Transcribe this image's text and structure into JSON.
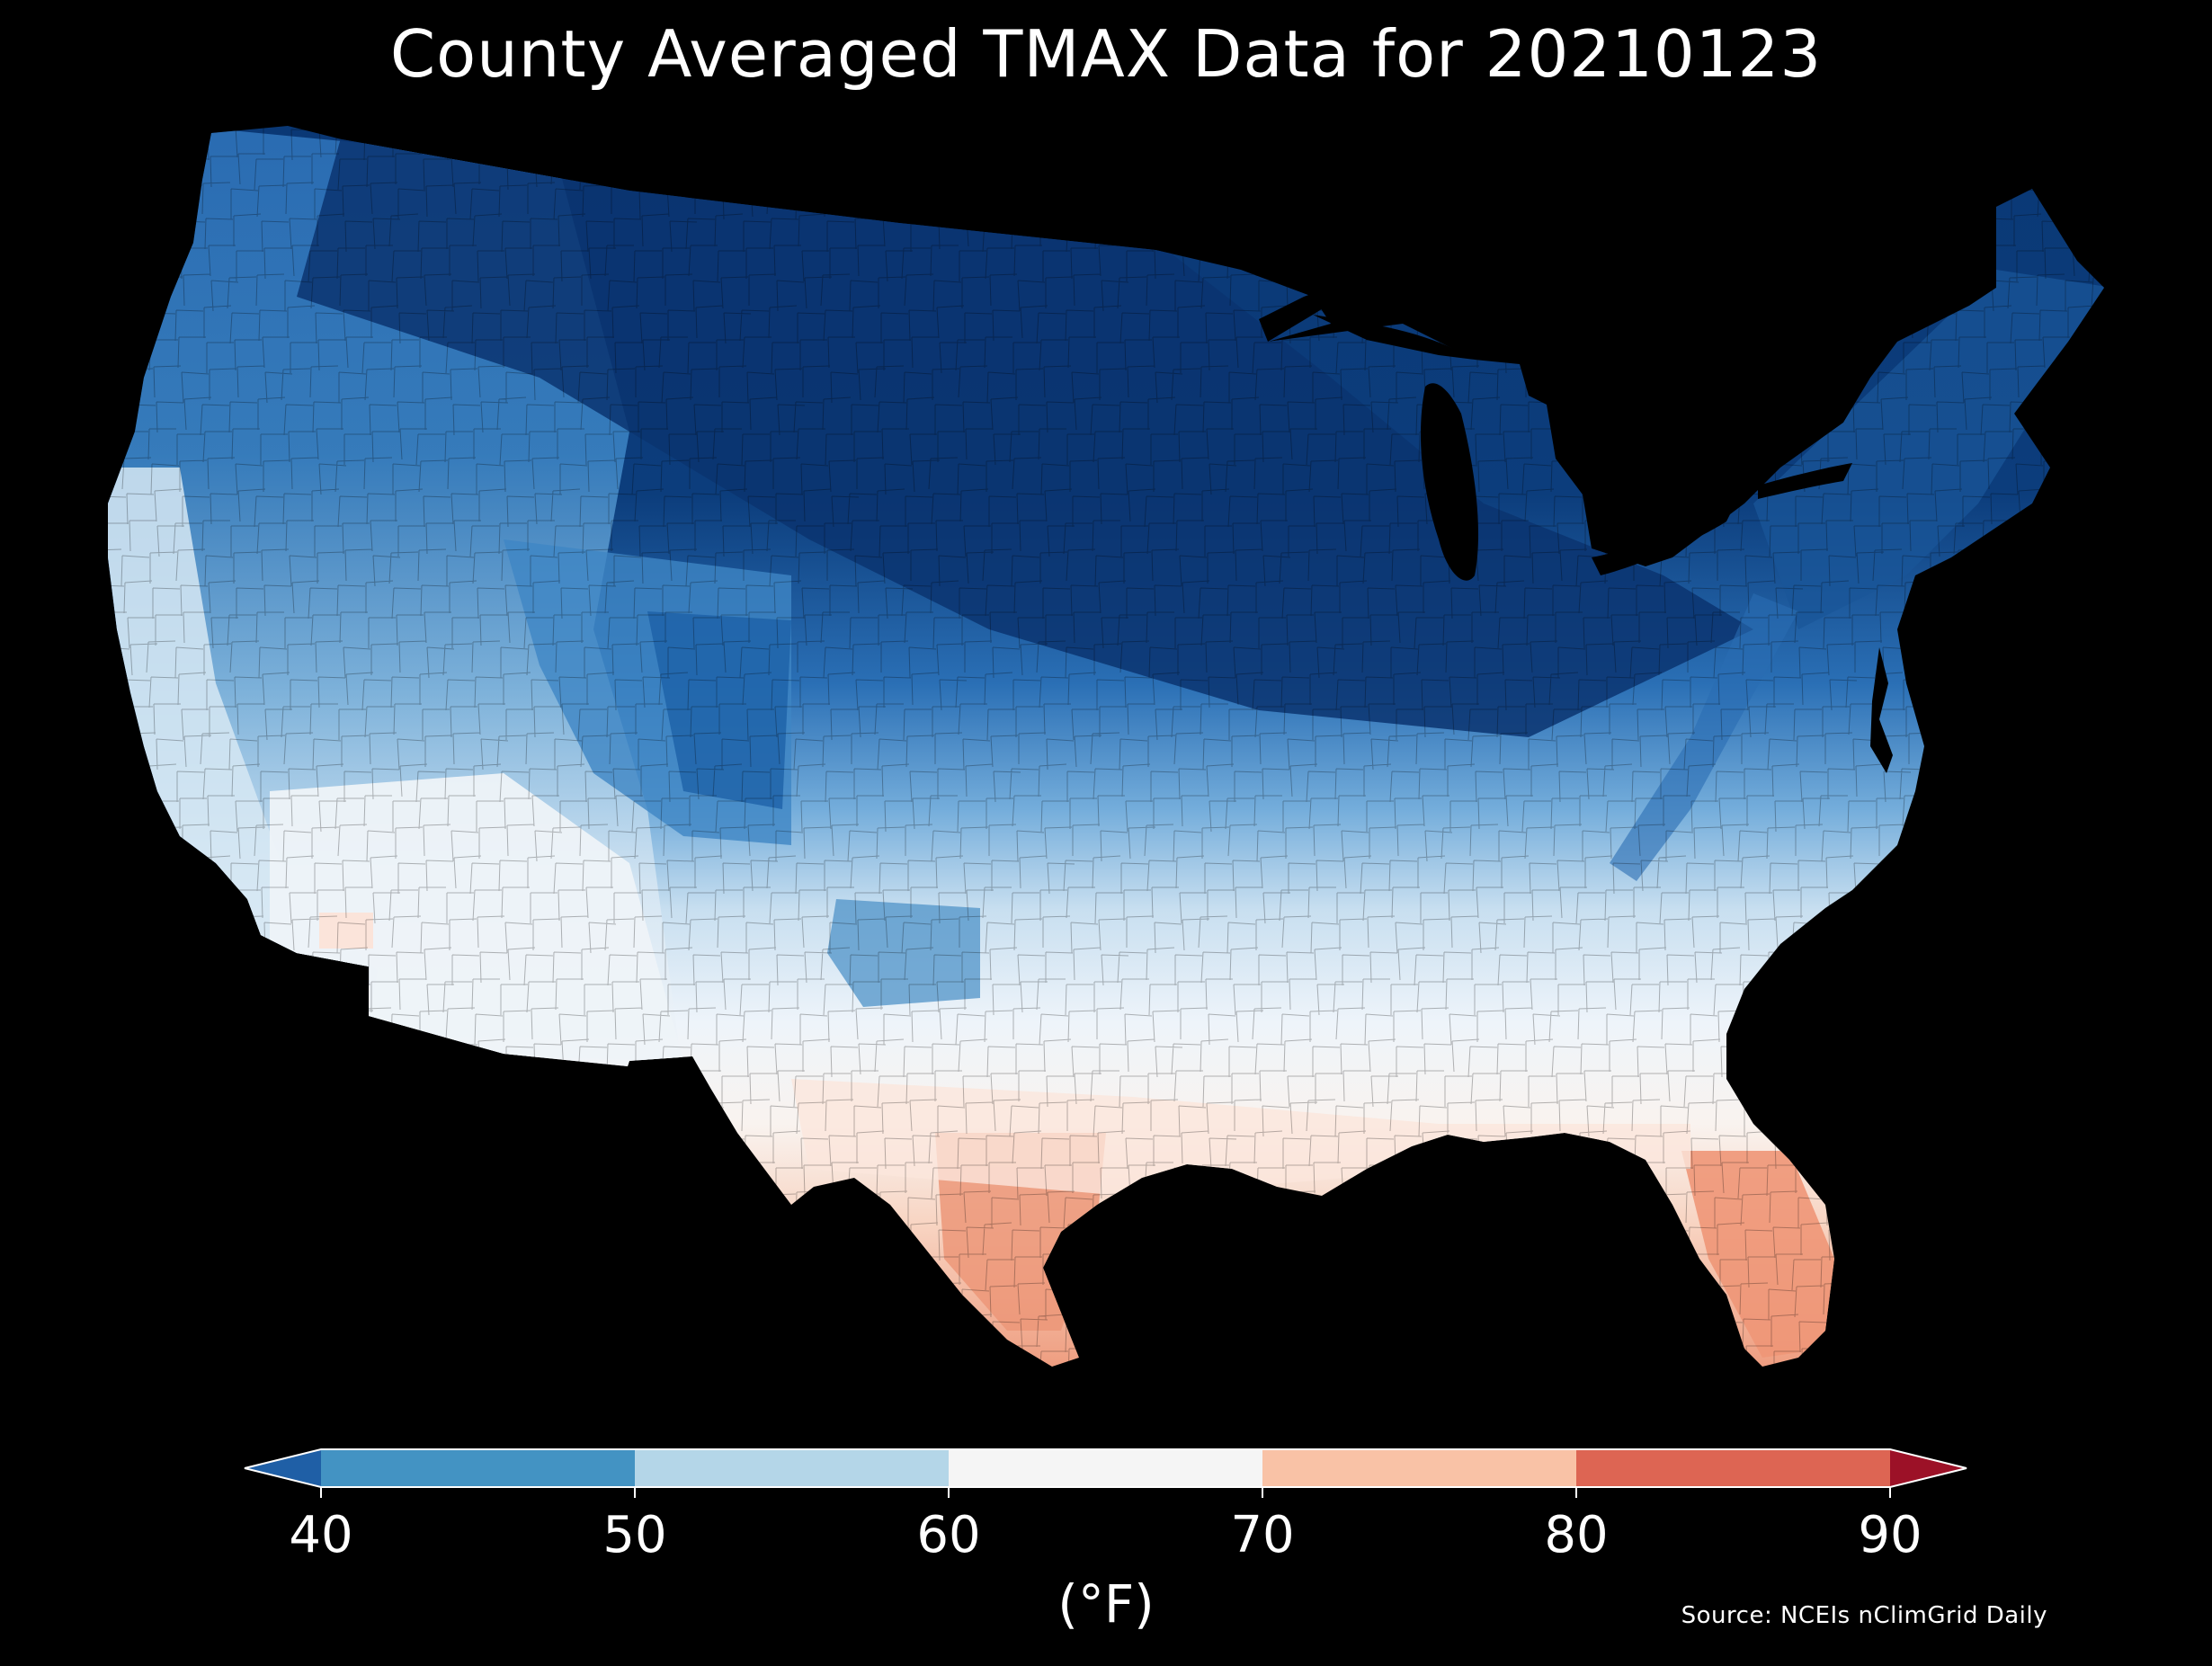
{
  "title": "County Averaged TMAX Data for 20210123",
  "colorbar": {
    "ticks": [
      "40",
      "50",
      "60",
      "70",
      "80",
      "90"
    ],
    "bins": [
      {
        "range": "<40",
        "color": "#1f5fa6"
      },
      {
        "range": "40-50",
        "color": "#4393c3"
      },
      {
        "range": "50-60",
        "color": "#b4d6e8"
      },
      {
        "range": "60-70",
        "color": "#f5f5f5"
      },
      {
        "range": "70-80",
        "color": "#f9c2a6"
      },
      {
        "range": "80-90",
        "color": "#dd6553"
      },
      {
        "range": ">90",
        "color": "#9c1127"
      }
    ],
    "unit": "(°F)"
  },
  "source": "Source: NCEIs nClimGrid Daily",
  "colors": {
    "background": "#000000",
    "coldest": "#08306b",
    "cold": "#2166ac",
    "cool": "#6baed6",
    "mild": "#deebf7",
    "neutral": "#f7f7f7",
    "warm": "#fcd5c0",
    "hot": "#ec9a7a"
  }
}
